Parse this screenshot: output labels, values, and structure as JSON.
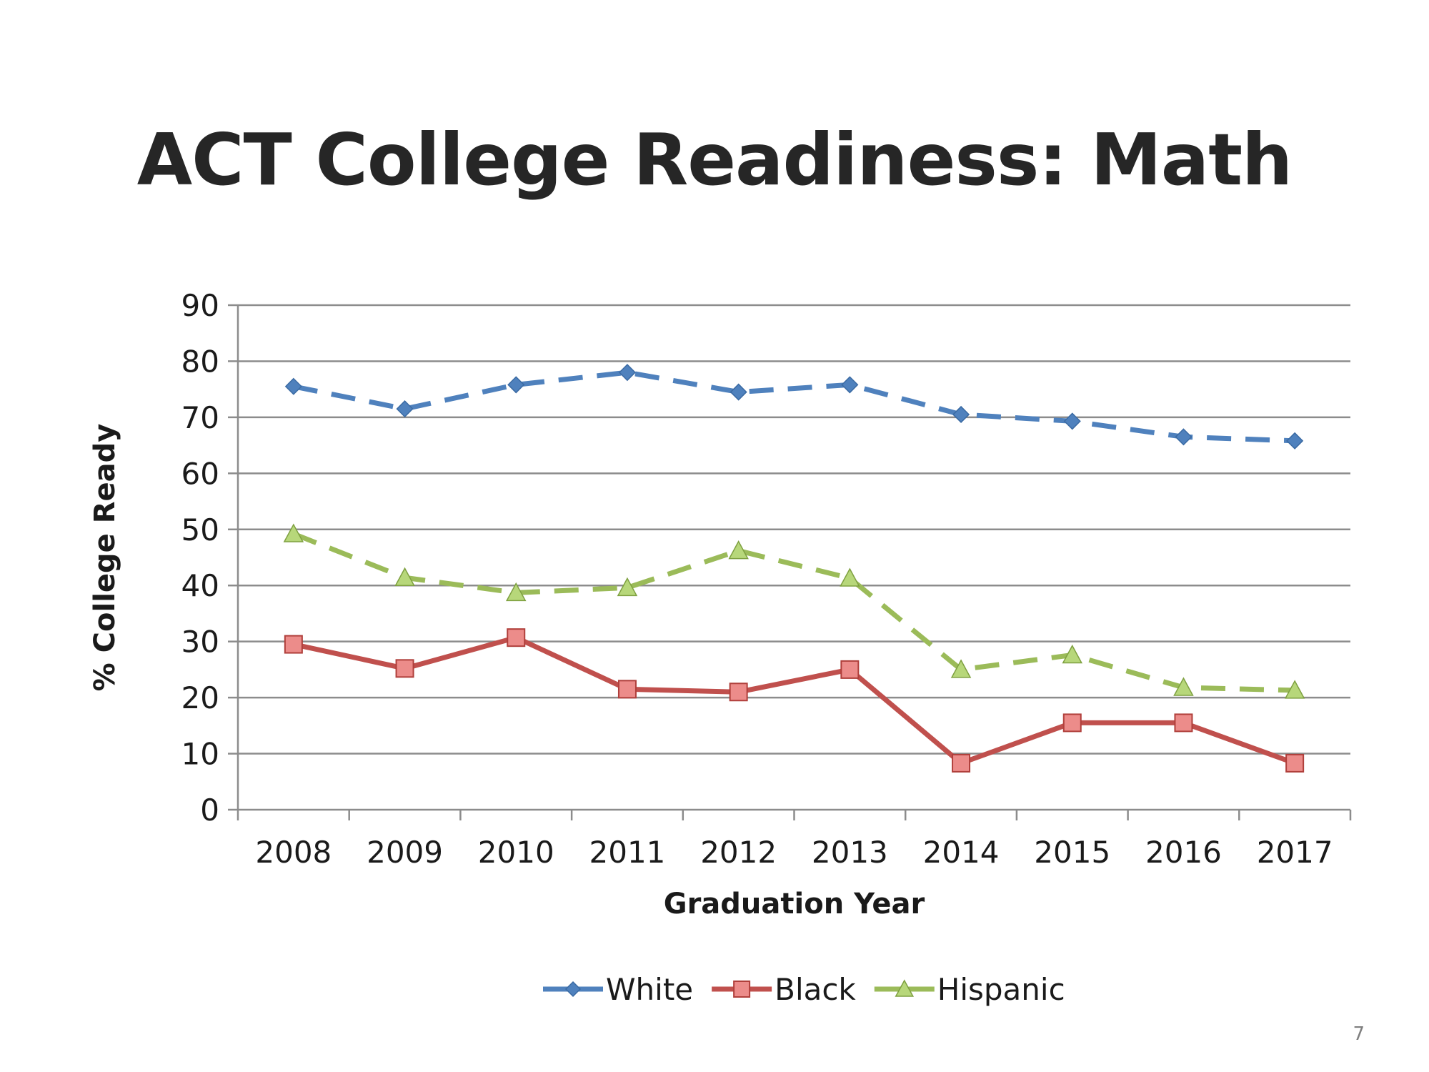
{
  "slide": {
    "title": "ACT College Readiness: Math",
    "page_number": "7"
  },
  "chart_data": {
    "type": "line",
    "categories": [
      "2008",
      "2009",
      "2010",
      "2011",
      "2012",
      "2013",
      "2014",
      "2015",
      "2016",
      "2017"
    ],
    "series": [
      {
        "name": "White",
        "values": [
          75.5,
          71.5,
          75.8,
          78,
          74.5,
          75.8,
          70.5,
          69.3,
          66.5,
          65.8
        ],
        "color": "#4f81bd",
        "line_style": "dashed",
        "marker": "diamond"
      },
      {
        "name": "Black",
        "values": [
          29.5,
          25.2,
          30.7,
          21.5,
          21,
          25,
          8.3,
          15.5,
          15.5,
          8.3
        ],
        "color": "#c0504d",
        "line_style": "solid",
        "marker": "square"
      },
      {
        "name": "Hispanic",
        "values": [
          49.2,
          41.4,
          38.7,
          39.6,
          46.2,
          41.3,
          25,
          27.6,
          21.8,
          21.3
        ],
        "color": "#9bbb59",
        "line_style": "dashed",
        "marker": "triangle"
      }
    ],
    "title": "ACT College Readiness: Math",
    "xlabel": "Graduation Year",
    "ylabel": "% College Ready",
    "ylim": [
      0,
      90
    ],
    "yticks": [
      "0",
      "10",
      "20",
      "30",
      "40",
      "50",
      "60",
      "70",
      "80",
      "90"
    ],
    "grid": true,
    "legend_position": "bottom"
  }
}
